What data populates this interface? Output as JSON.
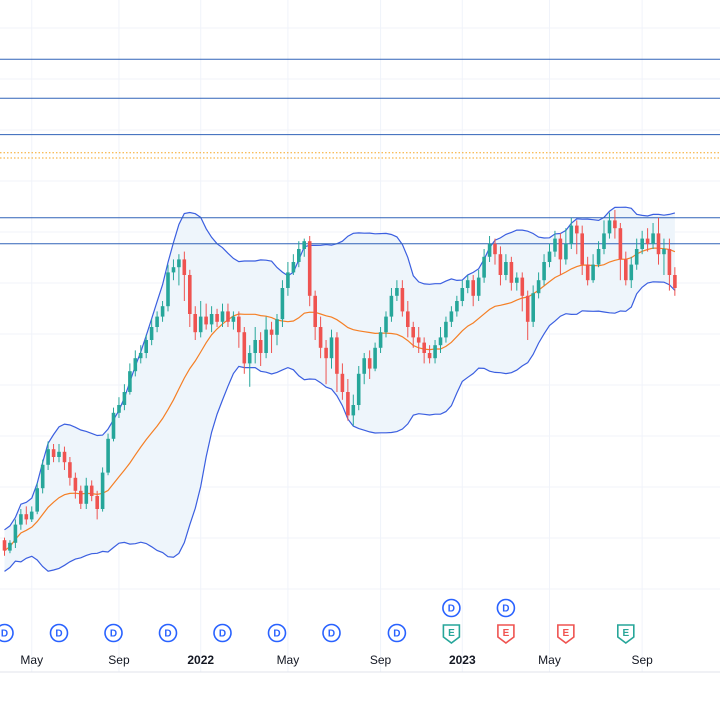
{
  "chart_data": {
    "type": "candlestick",
    "x_ticks": [
      {
        "label": "May",
        "index": 5,
        "bold": false
      },
      {
        "label": "Sep",
        "index": 21,
        "bold": false
      },
      {
        "label": "2022",
        "index": 36,
        "bold": true
      },
      {
        "label": "May",
        "index": 52,
        "bold": false
      },
      {
        "label": "Sep",
        "index": 69,
        "bold": false
      },
      {
        "label": "2023",
        "index": 84,
        "bold": true
      },
      {
        "label": "May",
        "index": 100,
        "bold": false
      },
      {
        "label": "Sep",
        "index": 117,
        "bold": false
      }
    ],
    "price_range": [
      0,
      100
    ],
    "candles": [
      [
        -2,
        -6,
        -1,
        -8
      ],
      [
        -6,
        -3,
        -2,
        -7
      ],
      [
        -3,
        4,
        6,
        -5
      ],
      [
        4,
        8,
        10,
        2
      ],
      [
        8,
        6,
        11,
        4
      ],
      [
        6,
        9,
        11,
        5
      ],
      [
        9,
        18,
        20,
        8
      ],
      [
        18,
        27,
        29,
        16
      ],
      [
        27,
        33,
        36,
        25
      ],
      [
        33,
        30,
        35,
        28
      ],
      [
        30,
        32,
        35,
        28
      ],
      [
        32,
        28,
        34,
        25
      ],
      [
        28,
        22,
        30,
        19
      ],
      [
        22,
        17,
        24,
        14
      ],
      [
        17,
        12,
        19,
        10
      ],
      [
        12,
        19,
        22,
        10
      ],
      [
        19,
        15,
        21,
        13
      ],
      [
        15,
        10,
        17,
        6
      ],
      [
        10,
        24,
        26,
        9
      ],
      [
        24,
        37,
        39,
        23
      ],
      [
        37,
        47,
        49,
        36
      ],
      [
        47,
        50,
        53,
        45
      ],
      [
        50,
        55,
        58,
        48
      ],
      [
        55,
        63,
        66,
        54
      ],
      [
        63,
        68,
        71,
        61
      ],
      [
        68,
        70,
        73,
        66
      ],
      [
        70,
        75,
        77,
        68
      ],
      [
        75,
        80,
        83,
        73
      ],
      [
        80,
        84,
        86,
        78
      ],
      [
        84,
        88,
        90,
        82
      ],
      [
        88,
        101,
        104,
        86
      ],
      [
        101,
        103,
        106,
        98
      ],
      [
        103,
        106,
        108,
        96
      ],
      [
        106,
        100,
        109,
        90
      ],
      [
        100,
        85,
        102,
        80
      ],
      [
        85,
        78,
        88,
        75
      ],
      [
        78,
        84,
        90,
        76
      ],
      [
        84,
        81,
        89,
        79
      ],
      [
        81,
        85,
        88,
        78
      ],
      [
        85,
        82,
        87,
        80
      ],
      [
        82,
        86,
        89,
        80
      ],
      [
        86,
        82,
        89,
        80
      ],
      [
        82,
        84,
        86,
        79
      ],
      [
        84,
        78,
        86,
        72
      ],
      [
        78,
        66,
        80,
        62
      ],
      [
        66,
        70,
        73,
        57
      ],
      [
        70,
        75,
        80,
        66
      ],
      [
        75,
        70,
        78,
        65
      ],
      [
        70,
        79,
        84,
        68
      ],
      [
        79,
        77,
        82,
        70
      ],
      [
        77,
        83,
        85,
        73
      ],
      [
        83,
        95,
        98,
        80
      ],
      [
        95,
        101,
        105,
        92
      ],
      [
        101,
        105,
        108,
        100
      ],
      [
        105,
        110,
        113,
        103
      ],
      [
        110,
        113,
        114,
        107
      ],
      [
        113,
        92,
        115,
        88
      ],
      [
        92,
        80,
        94,
        75
      ],
      [
        80,
        72,
        84,
        68
      ],
      [
        72,
        68,
        75,
        58
      ],
      [
        68,
        76,
        79,
        64
      ],
      [
        76,
        62,
        78,
        55
      ],
      [
        62,
        55,
        66,
        52
      ],
      [
        55,
        46,
        60,
        44
      ],
      [
        46,
        50,
        54,
        42
      ],
      [
        50,
        62,
        65,
        48
      ],
      [
        62,
        68,
        70,
        58
      ],
      [
        68,
        64,
        71,
        60
      ],
      [
        64,
        72,
        74,
        63
      ],
      [
        72,
        78,
        80,
        70
      ],
      [
        78,
        84,
        86,
        76
      ],
      [
        84,
        92,
        95,
        82
      ],
      [
        92,
        95,
        98,
        90
      ],
      [
        95,
        86,
        98,
        84
      ],
      [
        86,
        80,
        90,
        76
      ],
      [
        80,
        76,
        82,
        72
      ],
      [
        76,
        74,
        80,
        70
      ],
      [
        74,
        70,
        76,
        66
      ],
      [
        70,
        68,
        73,
        66
      ],
      [
        68,
        73,
        75,
        66
      ],
      [
        73,
        76,
        80,
        70
      ],
      [
        76,
        82,
        84,
        74
      ],
      [
        82,
        86,
        88,
        80
      ],
      [
        86,
        90,
        92,
        84
      ],
      [
        90,
        95,
        98,
        88
      ],
      [
        95,
        98,
        100,
        93
      ],
      [
        98,
        92,
        100,
        88
      ],
      [
        92,
        99,
        102,
        90
      ],
      [
        99,
        107,
        110,
        97
      ],
      [
        107,
        112,
        115,
        105
      ],
      [
        112,
        108,
        114,
        104
      ],
      [
        108,
        100,
        111,
        96
      ],
      [
        100,
        105,
        108,
        98
      ],
      [
        105,
        97,
        107,
        94
      ],
      [
        97,
        99,
        101,
        94
      ],
      [
        99,
        92,
        101,
        86
      ],
      [
        92,
        82,
        94,
        75
      ],
      [
        82,
        93,
        96,
        80
      ],
      [
        93,
        98,
        101,
        91
      ],
      [
        98,
        105,
        108,
        96
      ],
      [
        105,
        109,
        112,
        103
      ],
      [
        109,
        114,
        117,
        107
      ],
      [
        114,
        106,
        116,
        100
      ],
      [
        106,
        112,
        118,
        104
      ],
      [
        112,
        119,
        122,
        110
      ],
      [
        119,
        116,
        121,
        108
      ],
      [
        116,
        104,
        119,
        100
      ],
      [
        104,
        98,
        107,
        96
      ],
      [
        98,
        104,
        108,
        97
      ],
      [
        104,
        110,
        113,
        103
      ],
      [
        110,
        116,
        121,
        108
      ],
      [
        116,
        121,
        124,
        114
      ],
      [
        121,
        118,
        125,
        114
      ],
      [
        118,
        106,
        120,
        98
      ],
      [
        106,
        98,
        109,
        96
      ],
      [
        98,
        104,
        107,
        95
      ],
      [
        104,
        110,
        114,
        102
      ],
      [
        110,
        114,
        117,
        108
      ],
      [
        114,
        112,
        118,
        109
      ],
      [
        112,
        116,
        120,
        110
      ],
      [
        116,
        108,
        122,
        104
      ],
      [
        108,
        110,
        114,
        100
      ],
      [
        110,
        100,
        114,
        94
      ],
      [
        100,
        95,
        103,
        92
      ]
    ],
    "series": [
      {
        "type": "moving_average",
        "color": "#f57f25"
      },
      {
        "type": "bollinger_bands",
        "color": "#3b5fe0",
        "fill": "#eef5fb"
      }
    ],
    "horizontal_lines": [
      {
        "price": 183,
        "style": "solid",
        "color": "#3163b8"
      },
      {
        "price": 168,
        "style": "solid",
        "color": "#3163b8"
      },
      {
        "price": 154,
        "style": "solid",
        "color": "#3163b8"
      },
      {
        "price": 147,
        "style": "dotted",
        "color": "#f5a623"
      },
      {
        "price": 145,
        "style": "dotted",
        "color": "#f5a623"
      },
      {
        "price": 122,
        "style": "solid",
        "color": "#3163b8"
      },
      {
        "price": 112,
        "style": "solid",
        "color": "#3163b8"
      }
    ],
    "events": [
      {
        "type": "D",
        "index": 0,
        "row": 1
      },
      {
        "type": "D",
        "index": 10,
        "row": 1
      },
      {
        "type": "D",
        "index": 20,
        "row": 1
      },
      {
        "type": "D",
        "index": 30,
        "row": 1
      },
      {
        "type": "D",
        "index": 40,
        "row": 1
      },
      {
        "type": "D",
        "index": 50,
        "row": 1
      },
      {
        "type": "D",
        "index": 60,
        "row": 1
      },
      {
        "type": "D",
        "index": 72,
        "row": 1
      },
      {
        "type": "E",
        "index": 82,
        "row": 1,
        "color": "#26a69a"
      },
      {
        "type": "D",
        "index": 82,
        "row": 0
      },
      {
        "type": "E",
        "index": 92,
        "row": 1,
        "color": "#ef5350"
      },
      {
        "type": "D",
        "index": 92,
        "row": 0
      },
      {
        "type": "E",
        "index": 103,
        "row": 1,
        "color": "#ef5350"
      },
      {
        "type": "E",
        "index": 114,
        "row": 1,
        "color": "#26a69a"
      }
    ],
    "colors": {
      "up": "#26a69a",
      "down": "#ef5350",
      "dividend": "#2962ff",
      "grid": "#f0f3fa"
    }
  }
}
